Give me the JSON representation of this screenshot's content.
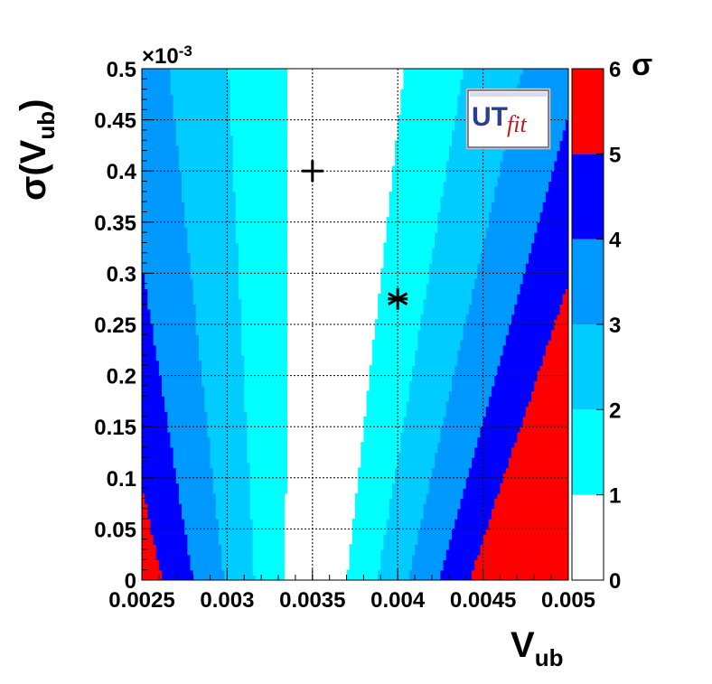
{
  "chart_data": {
    "type": "heatmap",
    "xlabel": {
      "main": "V",
      "sub": "ub"
    },
    "ylabel": {
      "main": "σ(V",
      "sub": "ub",
      "close": ")"
    },
    "xlim": [
      0.0025,
      0.005
    ],
    "ylim": [
      0,
      0.0005
    ],
    "x_ticks": [
      "0.0025",
      "0.003",
      "0.0035",
      "0.004",
      "0.0045",
      "0.005"
    ],
    "x_tick_values": [
      0.0025,
      0.003,
      0.0035,
      0.004,
      0.0045,
      0.005
    ],
    "y_ticks": [
      "0",
      "0.05",
      "0.1",
      "0.15",
      "0.2",
      "0.25",
      "0.3",
      "0.35",
      "0.4",
      "0.45",
      "0.5"
    ],
    "y_tick_values": [
      0,
      5e-05,
      0.0001,
      0.00015,
      0.0002,
      0.00025,
      0.0003,
      0.00035,
      0.0004,
      0.00045,
      0.0005
    ],
    "y_exponent": {
      "base": "×10",
      "power": "-3"
    },
    "grid": true,
    "colorbar": {
      "title": "σ",
      "labels": [
        "0",
        "1",
        "2",
        "3",
        "4",
        "5",
        "6"
      ],
      "levels": [
        {
          "from": 0,
          "to": 1,
          "color": "#ffffff"
        },
        {
          "from": 1,
          "to": 2,
          "color": "#00ffff"
        },
        {
          "from": 2,
          "to": 3,
          "color": "#00ccff"
        },
        {
          "from": 3,
          "to": 4,
          "color": "#0099ff"
        },
        {
          "from": 4,
          "to": 5,
          "color": "#0000ff"
        },
        {
          "from": 5,
          "to": 6,
          "color": "#ff0000"
        }
      ]
    },
    "contour_model": {
      "center_at_zero": 0.00352,
      "center_slope": 0.35,
      "half_width_at_zero": 0.00018,
      "half_width_slope": 0.33
    },
    "markers": [
      {
        "symbol": "+",
        "label": "cross",
        "x": 0.0035,
        "y": 0.0004
      },
      {
        "symbol": "*",
        "label": "star",
        "x": 0.004,
        "y": 0.000275
      }
    ],
    "logo": {
      "text1": "UT",
      "text2": "fit"
    }
  }
}
